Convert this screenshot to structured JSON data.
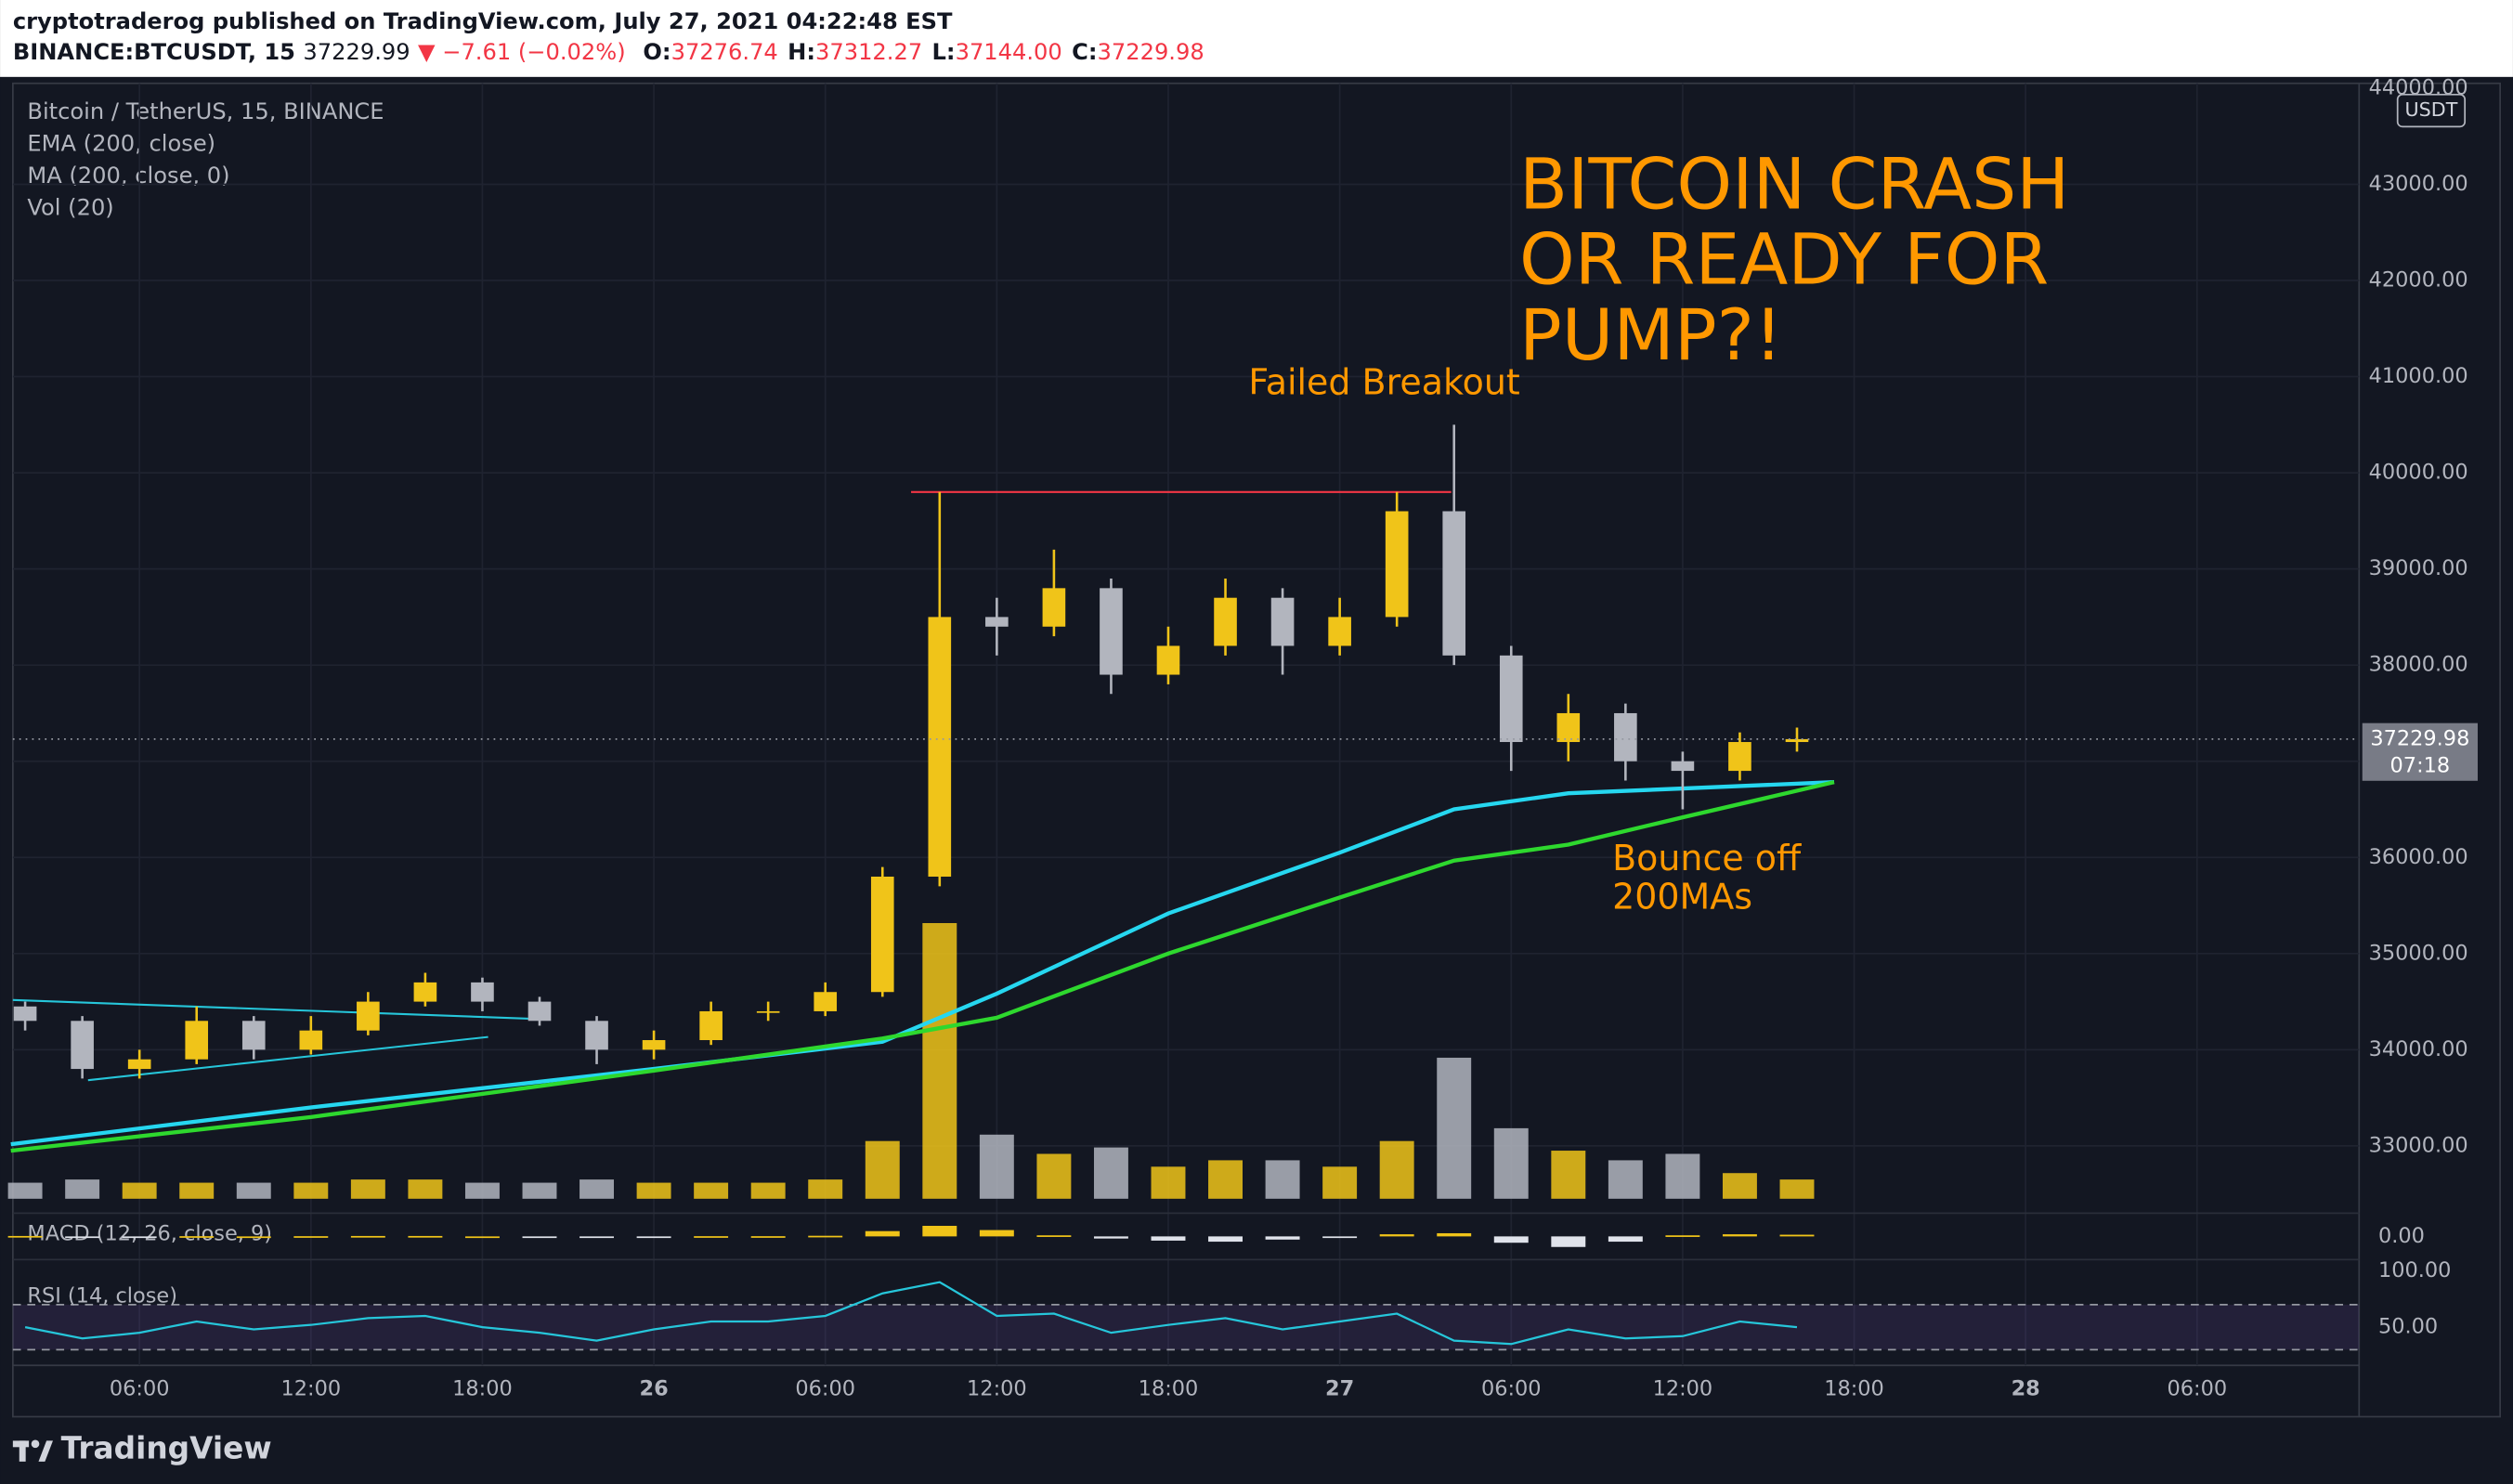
{
  "header": {
    "line1": "cryptotraderog published on TradingView.com, July 27, 2021 04:22:48 EST",
    "symbol": "BINANCE:BTCUSDT, 15",
    "price": "37229.99",
    "change": "▼ −7.61 (−0.02%)",
    "ohlc": [
      {
        "label": "O:",
        "value": "37276.74"
      },
      {
        "label": "H:",
        "value": "37312.27"
      },
      {
        "label": "L:",
        "value": "37144.00"
      },
      {
        "label": "C:",
        "value": "37229.98"
      }
    ]
  },
  "chart_data": {
    "type": "candlestick",
    "title": "Bitcoin / TetherUS, 15, BINANCE",
    "y_unit": "USDT",
    "grid": true,
    "up_color": "#f0c419",
    "down_color": "#b2b5be",
    "x": [
      2,
      4,
      6,
      8,
      10,
      12,
      14,
      16,
      18,
      20,
      22,
      24,
      26,
      28,
      30,
      32,
      34,
      36,
      38,
      40,
      42,
      44,
      46,
      48,
      50,
      52,
      54,
      56,
      58,
      60,
      62,
      64
    ],
    "open": [
      34450,
      34300,
      33800,
      33900,
      34300,
      34000,
      34200,
      34500,
      34700,
      34500,
      34300,
      34000,
      34100,
      34400,
      34400,
      34600,
      35800,
      38500,
      38400,
      38800,
      37900,
      38200,
      38700,
      38200,
      38500,
      39600,
      38100,
      37200,
      37500,
      37000,
      36900,
      37200
    ],
    "high": [
      34500,
      34350,
      34000,
      34450,
      34350,
      34350,
      34600,
      34800,
      34750,
      34550,
      34350,
      34200,
      34500,
      34500,
      34700,
      35900,
      39800,
      38700,
      39200,
      38900,
      38400,
      38900,
      38800,
      38700,
      39800,
      40500,
      38200,
      37700,
      37600,
      37100,
      37300,
      37350
    ],
    "low": [
      34200,
      33700,
      33700,
      33850,
      33900,
      33950,
      34150,
      34450,
      34400,
      34250,
      33850,
      33900,
      34050,
      34300,
      34350,
      34550,
      35700,
      38100,
      38300,
      37700,
      37800,
      38100,
      37900,
      38100,
      38400,
      38000,
      36900,
      37000,
      36800,
      36500,
      36800,
      37100
    ],
    "close": [
      34300,
      33800,
      33900,
      34300,
      34000,
      34200,
      34500,
      34700,
      34500,
      34300,
      34000,
      34100,
      34400,
      34400,
      34600,
      35800,
      38500,
      38400,
      38800,
      37900,
      38200,
      38700,
      38200,
      38500,
      39600,
      38100,
      37200,
      37500,
      37000,
      36900,
      37200,
      37229.98
    ],
    "countdown": "07:18",
    "xlim": [
      1.57,
      83.67
    ],
    "xticks": [
      {
        "value": 6,
        "label": "06:00"
      },
      {
        "value": 12,
        "label": "12:00"
      },
      {
        "value": 18,
        "label": "18:00"
      },
      {
        "value": 24,
        "label": "26"
      },
      {
        "value": 30,
        "label": "06:00"
      },
      {
        "value": 36,
        "label": "12:00"
      },
      {
        "value": 42,
        "label": "18:00"
      },
      {
        "value": 48,
        "label": "27"
      },
      {
        "value": 54,
        "label": "06:00"
      },
      {
        "value": 60,
        "label": "12:00"
      },
      {
        "value": 66,
        "label": "18:00"
      },
      {
        "value": 72,
        "label": "28"
      },
      {
        "value": 78,
        "label": "06:00"
      }
    ],
    "ylim": [
      32417,
      44050
    ],
    "yticks": [
      {
        "value": 33000,
        "label": "33000.00"
      },
      {
        "value": 34000,
        "label": "34000.00"
      },
      {
        "value": 35000,
        "label": "35000.00"
      },
      {
        "value": 36000,
        "label": "36000.00"
      },
      {
        "value": 37000,
        "label": "37000.00"
      },
      {
        "value": 38000,
        "label": "38000.00"
      },
      {
        "value": 39000,
        "label": "39000.00"
      },
      {
        "value": 40000,
        "label": "40000.00"
      },
      {
        "value": 41000,
        "label": "41000.00"
      },
      {
        "value": 42000,
        "label": "42000.00"
      },
      {
        "value": 43000,
        "label": "43000.00"
      },
      {
        "value": 44000,
        "label": "44000.00"
      }
    ],
    "overlays": [
      {
        "name": "EMA (200, close)",
        "color": "#26d7f0",
        "x": [
          1.5,
          12,
          24,
          32,
          36,
          42,
          48,
          52,
          56,
          60,
          65.3
        ],
        "values": [
          33017,
          33400,
          33800,
          34083,
          34583,
          35417,
          36050,
          36500,
          36667,
          36717,
          36783
        ]
      },
      {
        "name": "MA (200, close, 0)",
        "color": "#2ed82e",
        "x": [
          1.5,
          12,
          24,
          32,
          36,
          42,
          48,
          52,
          56,
          60,
          65.3
        ],
        "values": [
          32950,
          33300,
          33783,
          34117,
          34333,
          35000,
          35583,
          35967,
          36133,
          36417,
          36783
        ]
      }
    ],
    "trendlines": [
      {
        "color": "#26c6da",
        "x": [
          1.57,
          20.2
        ],
        "values": [
          34517,
          34317
        ]
      },
      {
        "color": "#26c6da",
        "x": [
          4.2,
          18.2
        ],
        "values": [
          33683,
          34133
        ]
      },
      {
        "color": "#f23645",
        "x": [
          33,
          51.9
        ],
        "values": [
          39800,
          39800
        ]
      }
    ],
    "volume": {
      "name": "Vol (20)",
      "vlim": [
        0,
        100
      ],
      "values": [
        5,
        6,
        5,
        5,
        5,
        5,
        6,
        6,
        5,
        5,
        6,
        5,
        5,
        5,
        6,
        18,
        86,
        20,
        14,
        16,
        10,
        12,
        12,
        10,
        18,
        44,
        22,
        15,
        12,
        14,
        8,
        6
      ]
    },
    "macd": {
      "name": "MACD (12, 26, close, 9)",
      "ylim": [
        -110,
        110
      ],
      "yticks": [
        {
          "value": 0,
          "label": "0.00"
        }
      ],
      "values": [
        2,
        -2,
        -2,
        1,
        0,
        1,
        2,
        2,
        0,
        -1,
        -2,
        -1,
        1,
        1,
        3,
        25,
        50,
        30,
        5,
        -10,
        -20,
        -25,
        -15,
        -5,
        10,
        15,
        -30,
        -50,
        -25,
        5,
        10,
        8
      ]
    },
    "rsi": {
      "name": "RSI (14, close)",
      "color": "#26c6da",
      "ylim": [
        16,
        110
      ],
      "bands": [
        70,
        30
      ],
      "yticks": [
        {
          "value": 100,
          "label": "100.00"
        },
        {
          "value": 50,
          "label": "50.00"
        }
      ],
      "values": [
        50,
        40,
        45,
        55,
        48,
        52,
        58,
        60,
        50,
        45,
        38,
        48,
        55,
        55,
        60,
        80,
        90,
        60,
        62,
        45,
        52,
        58,
        48,
        55,
        62,
        38,
        35,
        48,
        40,
        42,
        55,
        50
      ]
    },
    "annotations": [
      {
        "color": "#ff9800",
        "lines": [
          "BITCOIN CRASH",
          "OR READY FOR",
          "PUMP?!"
        ]
      },
      {
        "color": "#ff9800",
        "lines": [
          "Failed Breakout"
        ]
      },
      {
        "color": "#ff9800",
        "lines": [
          "Bounce off",
          "200MAs"
        ]
      }
    ]
  },
  "footer": {
    "brand": "TradingView"
  }
}
